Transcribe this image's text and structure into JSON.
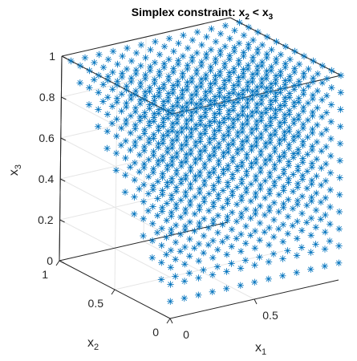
{
  "chart_data": {
    "type": "scatter",
    "dimensions": 3,
    "title": {
      "main": "Simplex constraint: x",
      "sub_a": "2",
      "mid": " < x",
      "sub_b": "3"
    },
    "xlabel": {
      "base": "x",
      "sub": "1"
    },
    "ylabel": {
      "base": "x",
      "sub": "2"
    },
    "zlabel": {
      "base": "x",
      "sub": "3"
    },
    "xlim": [
      0,
      1
    ],
    "ylim": [
      0,
      1
    ],
    "zlim": [
      0,
      1
    ],
    "xticks": [
      "0",
      "0.5"
    ],
    "yticks": [
      "0",
      "0.5",
      "1"
    ],
    "zticks": [
      "0",
      "0.2",
      "0.4",
      "0.6",
      "0.8",
      "1"
    ],
    "grid_step": 0.0833,
    "grid_levels": 13,
    "constraint": "x2 < x3",
    "marker": "*",
    "color": "#0072BD",
    "box": true,
    "grid": true
  }
}
